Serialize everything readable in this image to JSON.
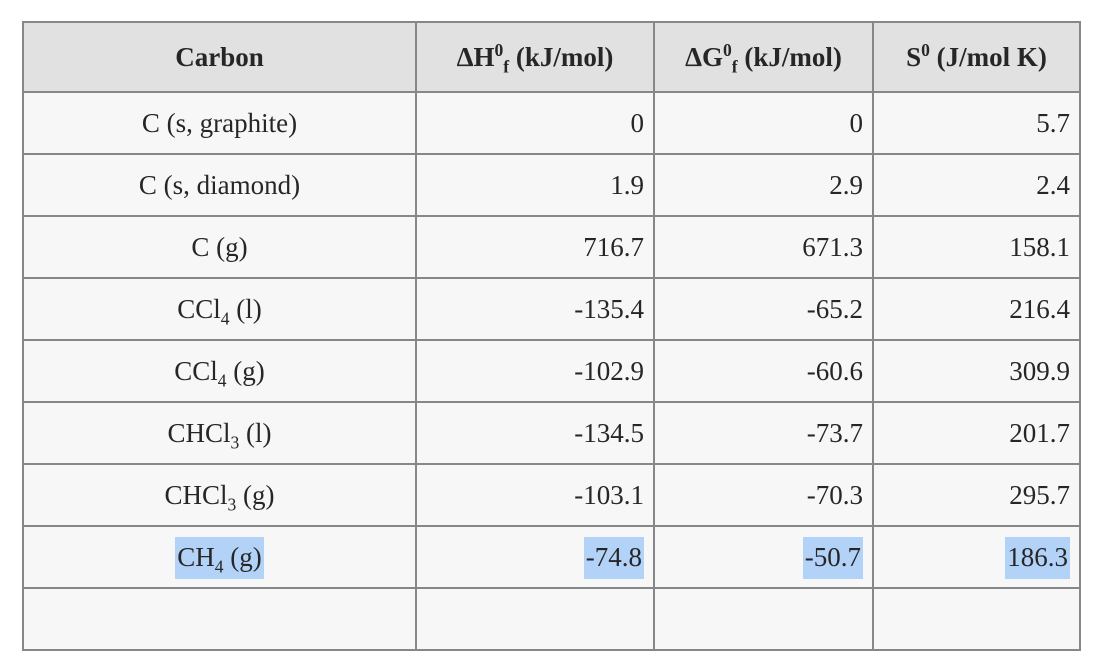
{
  "colors": {
    "border": "#878787",
    "header_bg": "#e1e1e1",
    "row_bg": "#f7f7f7",
    "text": "#262626",
    "highlight": "#b3d2f7",
    "page_bg": "#ffffff"
  },
  "chart_data": {
    "type": "table",
    "columns": [
      {
        "text": "Carbon",
        "base": "Carbon",
        "sup": "",
        "sub": "",
        "unit": ""
      },
      {
        "text": "ΔH0f (kJ/mol)",
        "base": "ΔH",
        "sup": "0",
        "sub": "f",
        "unit": " (kJ/mol)"
      },
      {
        "text": "ΔG0f (kJ/mol)",
        "base": "ΔG",
        "sup": "0",
        "sub": "f",
        "unit": " (kJ/mol)"
      },
      {
        "text": "S0 (J/mol K)",
        "base": "S",
        "sup": "0",
        "sub": "",
        "unit": " (J/mol K)"
      }
    ],
    "rows": [
      {
        "compound": {
          "text": "C (s, graphite)",
          "base": "C (s, graphite)",
          "sub": "",
          "suffix": ""
        },
        "dHf": "0",
        "dGf": "0",
        "S": "5.7",
        "highlighted": false
      },
      {
        "compound": {
          "text": "C (s, diamond)",
          "base": "C (s, diamond)",
          "sub": "",
          "suffix": ""
        },
        "dHf": "1.9",
        "dGf": "2.9",
        "S": "2.4",
        "highlighted": false
      },
      {
        "compound": {
          "text": "C (g)",
          "base": "C (g)",
          "sub": "",
          "suffix": ""
        },
        "dHf": "716.7",
        "dGf": "671.3",
        "S": "158.1",
        "highlighted": false
      },
      {
        "compound": {
          "text": "CCl4 (l)",
          "base": "CCl",
          "sub": "4",
          "suffix": " (l)"
        },
        "dHf": "-135.4",
        "dGf": "-65.2",
        "S": "216.4",
        "highlighted": false
      },
      {
        "compound": {
          "text": "CCl4 (g)",
          "base": "CCl",
          "sub": "4",
          "suffix": " (g)"
        },
        "dHf": "-102.9",
        "dGf": "-60.6",
        "S": "309.9",
        "highlighted": false
      },
      {
        "compound": {
          "text": "CHCl3 (l)",
          "base": "CHCl",
          "sub": "3",
          "suffix": " (l)"
        },
        "dHf": "-134.5",
        "dGf": "-73.7",
        "S": "201.7",
        "highlighted": false
      },
      {
        "compound": {
          "text": "CHCl3 (g)",
          "base": "CHCl",
          "sub": "3",
          "suffix": " (g)"
        },
        "dHf": "-103.1",
        "dGf": "-70.3",
        "S": "295.7",
        "highlighted": false
      },
      {
        "compound": {
          "text": "CH4 (g)",
          "base": "CH",
          "sub": "4",
          "suffix": " (g)"
        },
        "dHf": "-74.8",
        "dGf": "-50.7",
        "S": "186.3",
        "highlighted": true
      }
    ]
  }
}
